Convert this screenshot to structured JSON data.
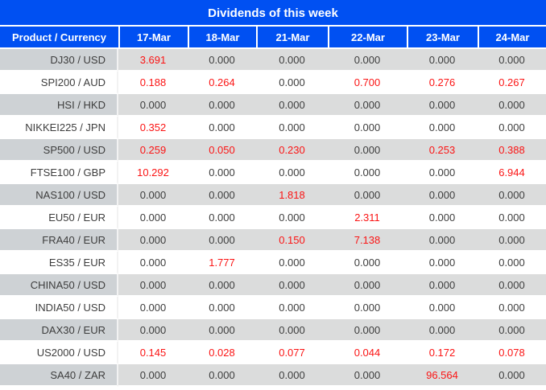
{
  "title": "Dividends of this week",
  "colors": {
    "header_blue": "#0050f2",
    "nonzero_red": "#fb1414",
    "gray_row_product": "#ced2d5",
    "gray_row_values": "#dbdcdc",
    "text_dark": "#3d3d3d"
  },
  "chart_data": {
    "type": "table",
    "title": "Dividends of this week",
    "columns": [
      "Product / Currency",
      "17-Mar",
      "18-Mar",
      "21-Mar",
      "22-Mar",
      "23-Mar",
      "24-Mar"
    ],
    "zero_value": "0.000",
    "value_color_rule": "non-zero values rendered in red",
    "rows": [
      {
        "product": "DJ30 / USD",
        "values": [
          "3.691",
          "0.000",
          "0.000",
          "0.000",
          "0.000",
          "0.000"
        ]
      },
      {
        "product": "SPI200 / AUD",
        "values": [
          "0.188",
          "0.264",
          "0.000",
          "0.700",
          "0.276",
          "0.267"
        ]
      },
      {
        "product": "HSI / HKD",
        "values": [
          "0.000",
          "0.000",
          "0.000",
          "0.000",
          "0.000",
          "0.000"
        ]
      },
      {
        "product": "NIKKEI225 / JPN",
        "values": [
          "0.352",
          "0.000",
          "0.000",
          "0.000",
          "0.000",
          "0.000"
        ]
      },
      {
        "product": "SP500 / USD",
        "values": [
          "0.259",
          "0.050",
          "0.230",
          "0.000",
          "0.253",
          "0.388"
        ]
      },
      {
        "product": "FTSE100 / GBP",
        "values": [
          "10.292",
          "0.000",
          "0.000",
          "0.000",
          "0.000",
          "6.944"
        ]
      },
      {
        "product": "NAS100 / USD",
        "values": [
          "0.000",
          "0.000",
          "1.818",
          "0.000",
          "0.000",
          "0.000"
        ]
      },
      {
        "product": "EU50 / EUR",
        "values": [
          "0.000",
          "0.000",
          "0.000",
          "2.311",
          "0.000",
          "0.000"
        ]
      },
      {
        "product": "FRA40 / EUR",
        "values": [
          "0.000",
          "0.000",
          "0.150",
          "7.138",
          "0.000",
          "0.000"
        ]
      },
      {
        "product": "ES35 / EUR",
        "values": [
          "0.000",
          "1.777",
          "0.000",
          "0.000",
          "0.000",
          "0.000"
        ]
      },
      {
        "product": "CHINA50 / USD",
        "values": [
          "0.000",
          "0.000",
          "0.000",
          "0.000",
          "0.000",
          "0.000"
        ]
      },
      {
        "product": "INDIA50 / USD",
        "values": [
          "0.000",
          "0.000",
          "0.000",
          "0.000",
          "0.000",
          "0.000"
        ]
      },
      {
        "product": "DAX30 / EUR",
        "values": [
          "0.000",
          "0.000",
          "0.000",
          "0.000",
          "0.000",
          "0.000"
        ]
      },
      {
        "product": "US2000 / USD",
        "values": [
          "0.145",
          "0.028",
          "0.077",
          "0.044",
          "0.172",
          "0.078"
        ]
      },
      {
        "product": "SA40 / ZAR",
        "values": [
          "0.000",
          "0.000",
          "0.000",
          "0.000",
          "96.564",
          "0.000"
        ]
      }
    ]
  }
}
